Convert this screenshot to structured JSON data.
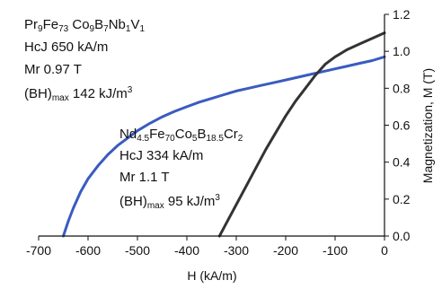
{
  "chart_data": {
    "type": "line",
    "xlabel": "H (kA/m)",
    "ylabel": "Magnetization, M (T)",
    "xlim": [
      -700,
      0
    ],
    "ylim": [
      0.0,
      1.2
    ],
    "x_ticks": [
      "-700",
      "-600",
      "-500",
      "-400",
      "-300",
      "-200",
      "-100",
      "0"
    ],
    "y_ticks": [
      "0.0",
      "0.2",
      "0.4",
      "0.6",
      "0.8",
      "1.0",
      "1.2"
    ],
    "grid": false,
    "series": [
      {
        "color": "#3a5bbf",
        "x": [
          -650,
          -640,
          -630,
          -615,
          -600,
          -580,
          -560,
          -540,
          -520,
          -500,
          -475,
          -450,
          -425,
          -400,
          -375,
          -350,
          -325,
          -300,
          -275,
          -250,
          -225,
          -200,
          -175,
          -150,
          -125,
          -100,
          -75,
          -50,
          -25,
          0
        ],
        "y": [
          0.0,
          0.08,
          0.15,
          0.24,
          0.31,
          0.38,
          0.44,
          0.49,
          0.53,
          0.57,
          0.61,
          0.645,
          0.675,
          0.7,
          0.725,
          0.745,
          0.765,
          0.785,
          0.8,
          0.815,
          0.83,
          0.845,
          0.86,
          0.875,
          0.89,
          0.905,
          0.92,
          0.935,
          0.95,
          0.97
        ]
      },
      {
        "color": "#333333",
        "x": [
          -334,
          -320,
          -300,
          -280,
          -260,
          -240,
          -220,
          -200,
          -180,
          -160,
          -140,
          -120,
          -100,
          -75,
          -50,
          -25,
          0
        ],
        "y": [
          0.0,
          0.07,
          0.17,
          0.27,
          0.37,
          0.47,
          0.56,
          0.65,
          0.73,
          0.8,
          0.87,
          0.93,
          0.97,
          1.01,
          1.04,
          1.07,
          1.1
        ]
      }
    ],
    "annotations": {
      "alloy1": {
        "formula": [
          [
            "Pr",
            ""
          ],
          [
            "9",
            "sub"
          ],
          [
            "Fe",
            ""
          ],
          [
            "73",
            "sub"
          ],
          [
            " Co",
            ""
          ],
          [
            "9",
            "sub"
          ],
          [
            "B",
            ""
          ],
          [
            "7",
            "sub"
          ],
          [
            "Nb",
            ""
          ],
          [
            "1",
            "sub"
          ],
          [
            "V",
            ""
          ],
          [
            "1",
            "sub"
          ]
        ],
        "hcj": "HcJ 650 kA/m",
        "mr": "Mr  0.97  T",
        "bh_a": "(BH)",
        "bh_sub": "max",
        "bh_b": " 142 kJ/m",
        "bh_sup": "3"
      },
      "alloy2": {
        "formula": [
          [
            "Nd",
            ""
          ],
          [
            "4.5",
            "sub"
          ],
          [
            "Fe",
            ""
          ],
          [
            "70",
            "sub"
          ],
          [
            "Co",
            ""
          ],
          [
            "5",
            "sub"
          ],
          [
            "B",
            ""
          ],
          [
            "18.5",
            "sub"
          ],
          [
            "Cr",
            ""
          ],
          [
            "2",
            "sub"
          ]
        ],
        "hcj": "HcJ 334 kA/m",
        "mr": "Mr  1.1  T",
        "bh_a": "(BH)",
        "bh_sub": "max",
        "bh_b": " 95 kJ/m",
        "bh_sup": "3"
      }
    }
  }
}
